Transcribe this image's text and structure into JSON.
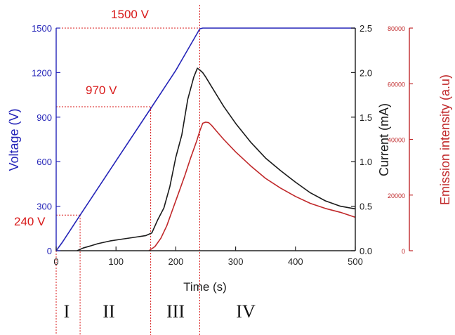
{
  "chart_data": {
    "type": "line",
    "xlabel": "Time (s)",
    "x_ticks": [
      "0",
      "100",
      "200",
      "300",
      "400",
      "500"
    ],
    "xlim": [
      0,
      500
    ],
    "axes": {
      "voltage": {
        "label": "Voltage (V)",
        "ticks": [
          "0",
          "300",
          "600",
          "900",
          "1200",
          "1500"
        ],
        "range": [
          0,
          1500
        ],
        "color": "#2424b8"
      },
      "current": {
        "label": "Current (mA)",
        "ticks": [
          "0.0",
          "0.5",
          "1.0",
          "1.5",
          "2.0",
          "2.5"
        ],
        "range": [
          0,
          2.5
        ],
        "color": "#1a1a1a"
      },
      "emission": {
        "label": "Emission intensity (a.u)",
        "ticks": [
          "0",
          "20000",
          "40000",
          "60000",
          "80000"
        ],
        "range": [
          0,
          80000
        ],
        "color": "#c0282a"
      }
    },
    "series": [
      {
        "axis": "voltage",
        "color": "#2424b8",
        "x": [
          0,
          10,
          40,
          100,
          160,
          200,
          240,
          245,
          300,
          350,
          400,
          450,
          500
        ],
        "y": [
          0,
          55,
          240,
          605,
          970,
          1215,
          1495,
          1500,
          1500,
          1500,
          1500,
          1500,
          1500
        ]
      },
      {
        "axis": "current",
        "color": "#1a1a1a",
        "x": [
          35,
          45,
          55,
          70,
          90,
          110,
          130,
          150,
          160,
          170,
          180,
          190,
          200,
          210,
          220,
          230,
          236,
          240,
          245,
          250,
          260,
          280,
          300,
          325,
          350,
          375,
          400,
          425,
          450,
          475,
          500
        ],
        "y": [
          0.0,
          0.03,
          0.05,
          0.08,
          0.11,
          0.13,
          0.15,
          0.17,
          0.2,
          0.35,
          0.48,
          0.72,
          1.05,
          1.3,
          1.7,
          1.95,
          2.05,
          2.03,
          2.0,
          1.95,
          1.84,
          1.62,
          1.43,
          1.22,
          1.04,
          0.9,
          0.77,
          0.65,
          0.56,
          0.5,
          0.47
        ]
      },
      {
        "axis": "emission",
        "color": "#c0282a",
        "x": [
          155,
          165,
          175,
          185,
          195,
          205,
          215,
          225,
          235,
          240,
          245,
          250,
          255,
          260,
          270,
          280,
          300,
          325,
          350,
          375,
          400,
          425,
          450,
          475,
          500
        ],
        "y": [
          0,
          1500,
          4500,
          9000,
          15000,
          21000,
          27000,
          33500,
          39500,
          43000,
          45800,
          46200,
          46000,
          45000,
          42500,
          40000,
          35500,
          30500,
          26000,
          22500,
          19500,
          17000,
          15200,
          13800,
          12000
        ]
      }
    ],
    "annotations": {
      "voltage_labels": [
        {
          "text": "1500 V",
          "value": 1500
        },
        {
          "text": "970 V",
          "value": 970
        },
        {
          "text": "240 V",
          "value": 240
        }
      ],
      "boundary_times": [
        40,
        158,
        240
      ],
      "regions": [
        "I",
        "II",
        "III",
        "IV"
      ]
    },
    "guide_color": "#d81818"
  }
}
